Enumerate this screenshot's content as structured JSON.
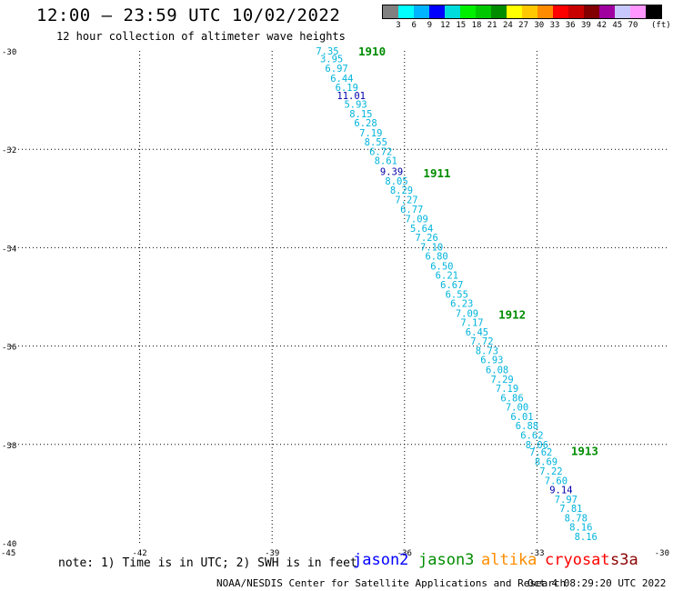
{
  "header": {
    "title": "12:00 – 23:59 UTC 10/02/2022",
    "subtitle": "12 hour collection of altimeter wave heights"
  },
  "legend": {
    "unit": "(ft)",
    "colors": [
      "#808080",
      "#00ffff",
      "#00b4ff",
      "#0000ff",
      "#00dcdc",
      "#00f000",
      "#00c800",
      "#008c00",
      "#ffff00",
      "#ffc800",
      "#ff8c00",
      "#ff0000",
      "#c80000",
      "#820000",
      "#a000a0",
      "#c8c8ff",
      "#ff96ff",
      "#000000"
    ],
    "labels": [
      "3",
      "6",
      "9",
      "12",
      "15",
      "18",
      "21",
      "24",
      "27",
      "30",
      "33",
      "36",
      "39",
      "42",
      "45",
      "70"
    ]
  },
  "map": {
    "lat_labels": [
      "-30",
      "-32",
      "-34",
      "-36",
      "-38",
      "-40"
    ],
    "lon_labels": [
      "-45",
      "-42",
      "-39",
      "-36",
      "-33",
      "-30"
    ],
    "track_labels": [
      {
        "text": "1910",
        "lat": -30.0
      },
      {
        "text": "1911",
        "lat": -32.48
      },
      {
        "text": "1912",
        "lat": -35.35
      },
      {
        "text": "1913",
        "lat": -38.12
      }
    ],
    "waves": [
      {
        "text": "7.35",
        "lat": -30.0,
        "level": "normal"
      },
      {
        "text": "3.95",
        "lat": -30.16,
        "level": "normal"
      },
      {
        "text": "6.97",
        "lat": -30.35,
        "level": "normal"
      },
      {
        "text": "6.44",
        "lat": -30.55,
        "level": "normal"
      },
      {
        "text": "6.19",
        "lat": -30.74,
        "level": "normal"
      },
      {
        "text": "11.01",
        "lat": -30.91,
        "level": "high"
      },
      {
        "text": "5.93",
        "lat": -31.08,
        "level": "normal"
      },
      {
        "text": "8.15",
        "lat": -31.28,
        "level": "normal"
      },
      {
        "text": "6.28",
        "lat": -31.46,
        "level": "normal"
      },
      {
        "text": "7.19",
        "lat": -31.66,
        "level": "normal"
      },
      {
        "text": "8.55",
        "lat": -31.85,
        "level": "normal"
      },
      {
        "text": "6.72",
        "lat": -32.04,
        "level": "normal"
      },
      {
        "text": "8.61",
        "lat": -32.23,
        "level": "normal"
      },
      {
        "text": "9.39",
        "lat": -32.45,
        "level": "high"
      },
      {
        "text": "8.05",
        "lat": -32.64,
        "level": "normal"
      },
      {
        "text": "8.29",
        "lat": -32.83,
        "level": "normal"
      },
      {
        "text": "7.27",
        "lat": -33.02,
        "level": "normal"
      },
      {
        "text": "6.77",
        "lat": -33.22,
        "level": "normal"
      },
      {
        "text": "7.09",
        "lat": -33.41,
        "level": "normal"
      },
      {
        "text": "5.64",
        "lat": -33.6,
        "level": "normal"
      },
      {
        "text": "7.26",
        "lat": -33.79,
        "level": "normal"
      },
      {
        "text": "7.10",
        "lat": -33.98,
        "level": "normal"
      },
      {
        "text": "6.80",
        "lat": -34.17,
        "level": "normal"
      },
      {
        "text": "6.50",
        "lat": -34.37,
        "level": "normal"
      },
      {
        "text": "6.21",
        "lat": -34.56,
        "level": "normal"
      },
      {
        "text": "6.67",
        "lat": -34.75,
        "level": "normal"
      },
      {
        "text": "6.55",
        "lat": -34.94,
        "level": "normal"
      },
      {
        "text": "6.23",
        "lat": -35.13,
        "level": "normal"
      },
      {
        "text": "7.09",
        "lat": -35.33,
        "level": "normal"
      },
      {
        "text": "7.17",
        "lat": -35.52,
        "level": "normal"
      },
      {
        "text": "6.45",
        "lat": -35.71,
        "level": "normal"
      },
      {
        "text": "7.72",
        "lat": -35.9,
        "level": "normal"
      },
      {
        "text": "8.73",
        "lat": -36.09,
        "level": "normal"
      },
      {
        "text": "6.93",
        "lat": -36.28,
        "level": "normal"
      },
      {
        "text": "6.08",
        "lat": -36.48,
        "level": "normal"
      },
      {
        "text": "7.29",
        "lat": -36.67,
        "level": "normal"
      },
      {
        "text": "7.19",
        "lat": -36.86,
        "level": "normal"
      },
      {
        "text": "6.86",
        "lat": -37.05,
        "level": "normal"
      },
      {
        "text": "7.00",
        "lat": -37.24,
        "level": "normal"
      },
      {
        "text": "6.01",
        "lat": -37.43,
        "level": "normal"
      },
      {
        "text": "6.88",
        "lat": -37.62,
        "level": "normal"
      },
      {
        "text": "6.62",
        "lat": -37.81,
        "level": "normal"
      },
      {
        "text": "8.06",
        "lat": -38.0,
        "level": "normal"
      },
      {
        "text": "7.62",
        "lat": -38.15,
        "level": "normal"
      },
      {
        "text": "8.69",
        "lat": -38.35,
        "level": "normal"
      },
      {
        "text": "7.22",
        "lat": -38.54,
        "level": "normal"
      },
      {
        "text": "7.60",
        "lat": -38.73,
        "level": "normal"
      },
      {
        "text": "9.14",
        "lat": -38.92,
        "level": "high"
      },
      {
        "text": "7.97",
        "lat": -39.11,
        "level": "normal"
      },
      {
        "text": "7.81",
        "lat": -39.3,
        "level": "normal"
      },
      {
        "text": "8.78",
        "lat": -39.49,
        "level": "normal"
      },
      {
        "text": "8.16",
        "lat": -39.68,
        "level": "normal"
      },
      {
        "text": "8.16",
        "lat": -39.87,
        "level": "normal"
      }
    ]
  },
  "colors": {
    "wave_normal": "#00b4dc",
    "wave_high": "#0000aa",
    "track_label": "#008c00",
    "grid": "#000000"
  },
  "footer": {
    "note": "note: 1) Time is in UTC; 2) SWH is in feet",
    "satellites": [
      {
        "name": "jason2",
        "color": "#0000ff"
      },
      {
        "name": "jason3",
        "color": "#008c00"
      },
      {
        "name": "altika",
        "color": "#ff8c00"
      },
      {
        "name": "cryosat",
        "color": "#ff0000"
      },
      {
        "name": "s3a",
        "color": "#8c0000"
      }
    ],
    "credit": "NOAA/NESDIS Center for Satellite Applications and Research",
    "generated": "Oct  4 08:29:20 UTC 2022"
  }
}
